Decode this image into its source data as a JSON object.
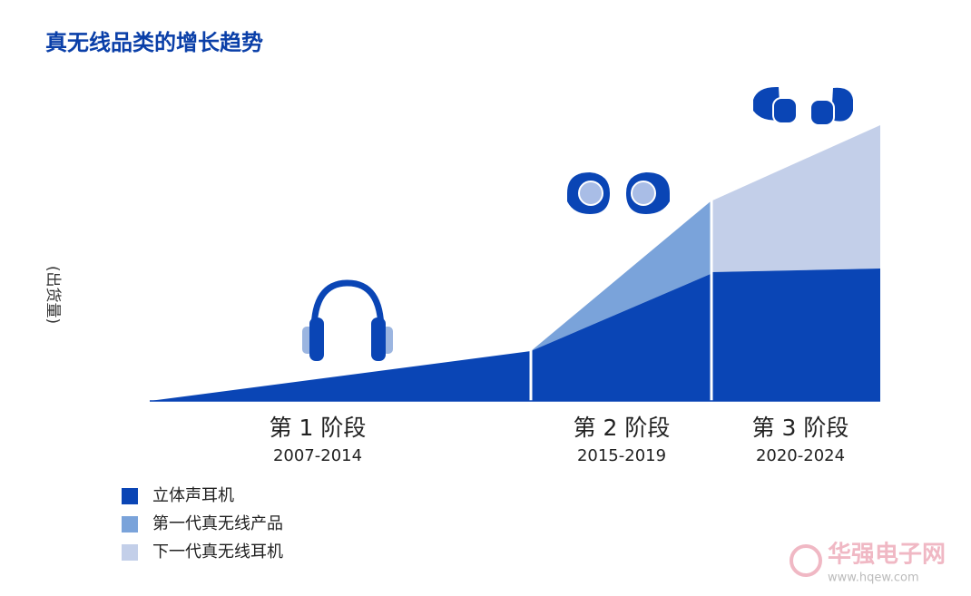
{
  "title": "真无线品类的增长趋势",
  "y_label": "(出货量)",
  "stages": [
    {
      "label": "第 1 阶段",
      "years": "2007-2014"
    },
    {
      "label": "第 2 阶段",
      "years": "2015-2019"
    },
    {
      "label": "第 3 阶段",
      "years": "2020-2024"
    }
  ],
  "legend": [
    "立体声耳机",
    "第一代真无线产品",
    "下一代真无线耳机"
  ],
  "watermark": {
    "name": "华强电子网",
    "url": "www.hqew.com"
  }
}
